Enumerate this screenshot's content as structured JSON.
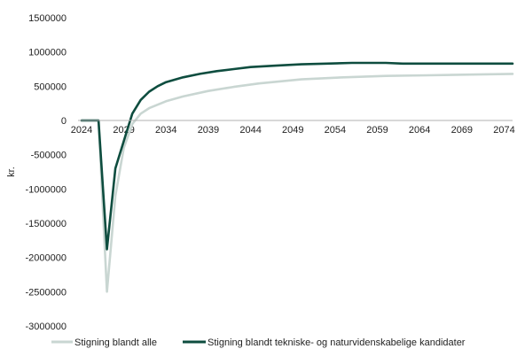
{
  "chart_data": {
    "type": "line",
    "ylabel": "kr.",
    "xlabel": "",
    "title": "",
    "ylim": [
      -3000000,
      1500000
    ],
    "yticks": [
      "1500000",
      "1000000",
      "500000",
      "0",
      "-500000",
      "-1000000",
      "-1500000",
      "-2000000",
      "-2500000",
      "-3000000"
    ],
    "ytick_values": [
      1500000,
      1000000,
      500000,
      0,
      -500000,
      -1000000,
      -1500000,
      -2000000,
      -2500000,
      -3000000
    ],
    "xlim": [
      2024,
      2075
    ],
    "xticks": [
      "2024",
      "2029",
      "2034",
      "2039",
      "2044",
      "2049",
      "2054",
      "2059",
      "2064",
      "2069",
      "2074"
    ],
    "xtick_values": [
      2024,
      2029,
      2034,
      2039,
      2044,
      2049,
      2054,
      2059,
      2064,
      2069,
      2074
    ],
    "grid": false,
    "legend_position": "bottom",
    "series": [
      {
        "name": "Stigning blandt alle",
        "color": "#c9d6d2",
        "x": [
          2024,
          2025,
          2026,
          2027,
          2028,
          2029,
          2030,
          2031,
          2032,
          2034,
          2036,
          2039,
          2042,
          2045,
          2050,
          2055,
          2060,
          2065,
          2070,
          2075
        ],
        "y": [
          0,
          0,
          0,
          -2500000,
          -1100000,
          -400000,
          -50000,
          100000,
          180000,
          280000,
          350000,
          430000,
          490000,
          540000,
          600000,
          630000,
          650000,
          660000,
          670000,
          680000
        ]
      },
      {
        "name": "Stigning blandt tekniske- og naturvidenskabelige kandidater",
        "color": "#0e4d3f",
        "x": [
          2024,
          2025,
          2026,
          2027,
          2028,
          2029,
          2030,
          2031,
          2032,
          2033,
          2034,
          2036,
          2038,
          2040,
          2042,
          2044,
          2047,
          2050,
          2053,
          2056,
          2060,
          2062,
          2065,
          2070,
          2075
        ],
        "y": [
          0,
          0,
          0,
          -1880000,
          -700000,
          -300000,
          100000,
          300000,
          420000,
          500000,
          560000,
          630000,
          680000,
          720000,
          750000,
          780000,
          800000,
          820000,
          830000,
          840000,
          840000,
          830000,
          830000,
          830000,
          830000
        ]
      }
    ]
  }
}
